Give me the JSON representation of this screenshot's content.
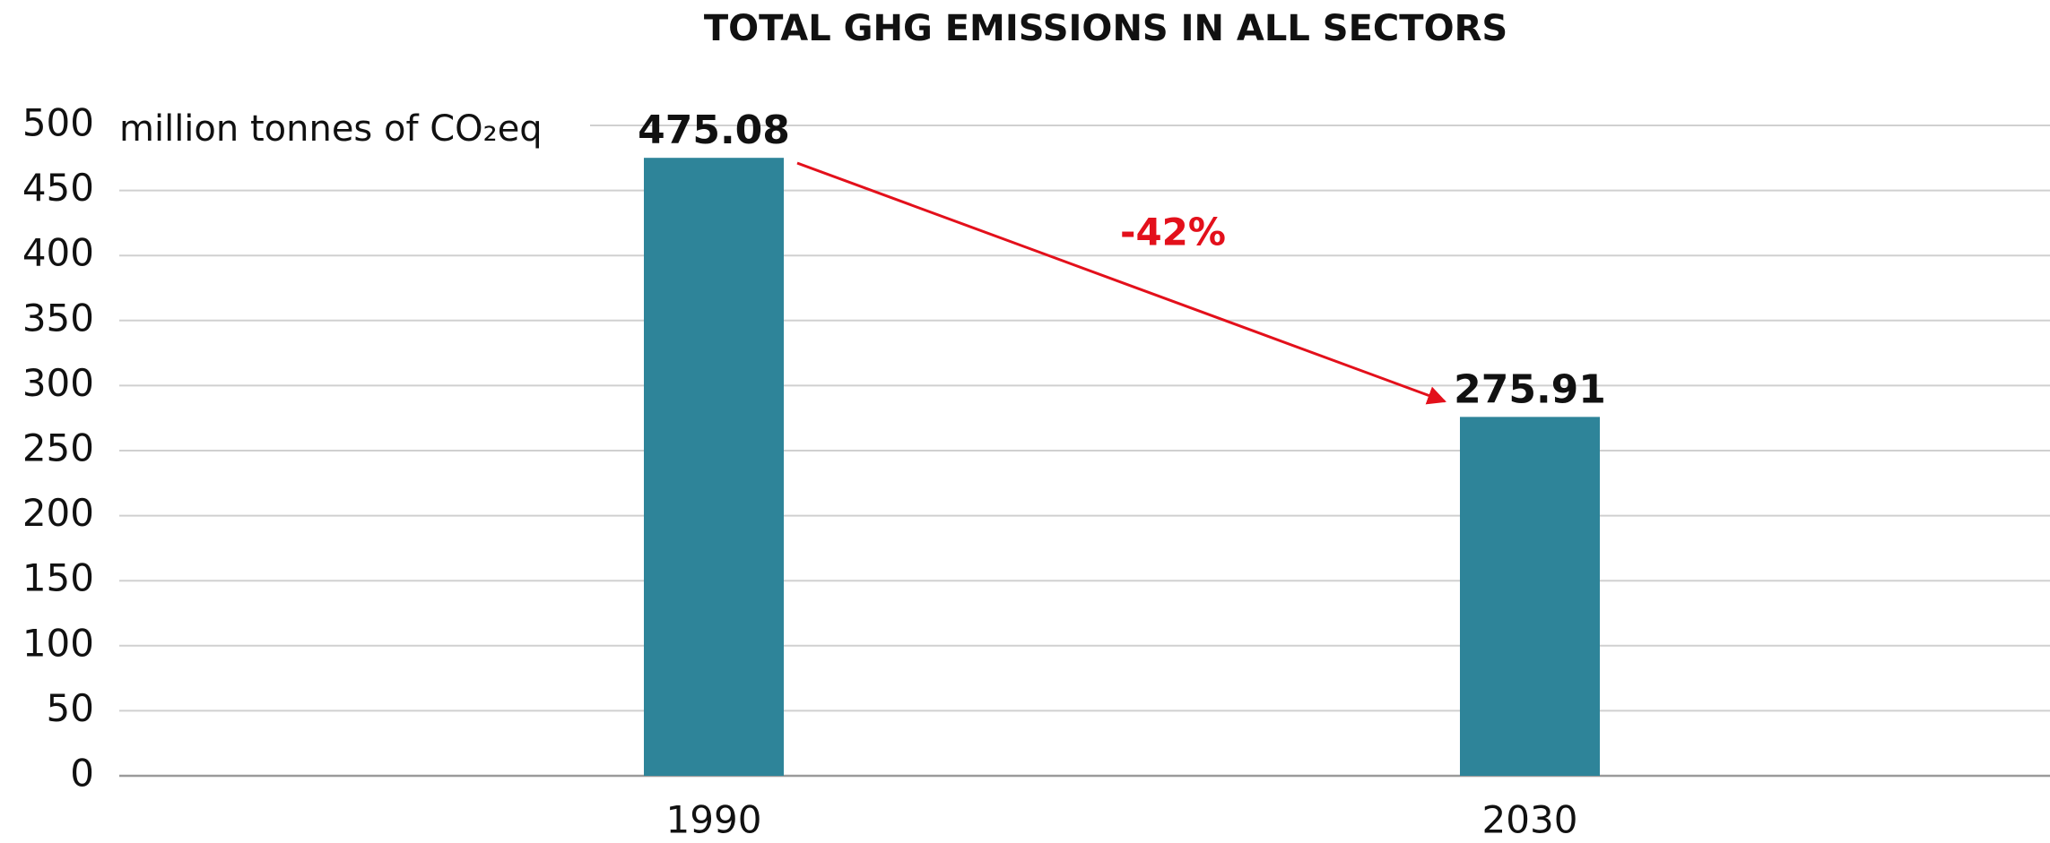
{
  "chart_data": {
    "type": "bar",
    "title": "TOTAL GHG EMISSIONS IN ALL SECTORS",
    "y_label": "million tonnes of CO₂eq",
    "annotation": "-42%",
    "categories": [
      "1990",
      "2030"
    ],
    "values": [
      475.08,
      275.91
    ],
    "color": "#2e8499",
    "ylim": [
      0,
      500
    ],
    "yticks": [
      0,
      50,
      100,
      150,
      200,
      250,
      300,
      350,
      400,
      450,
      500
    ],
    "grid": true
  }
}
